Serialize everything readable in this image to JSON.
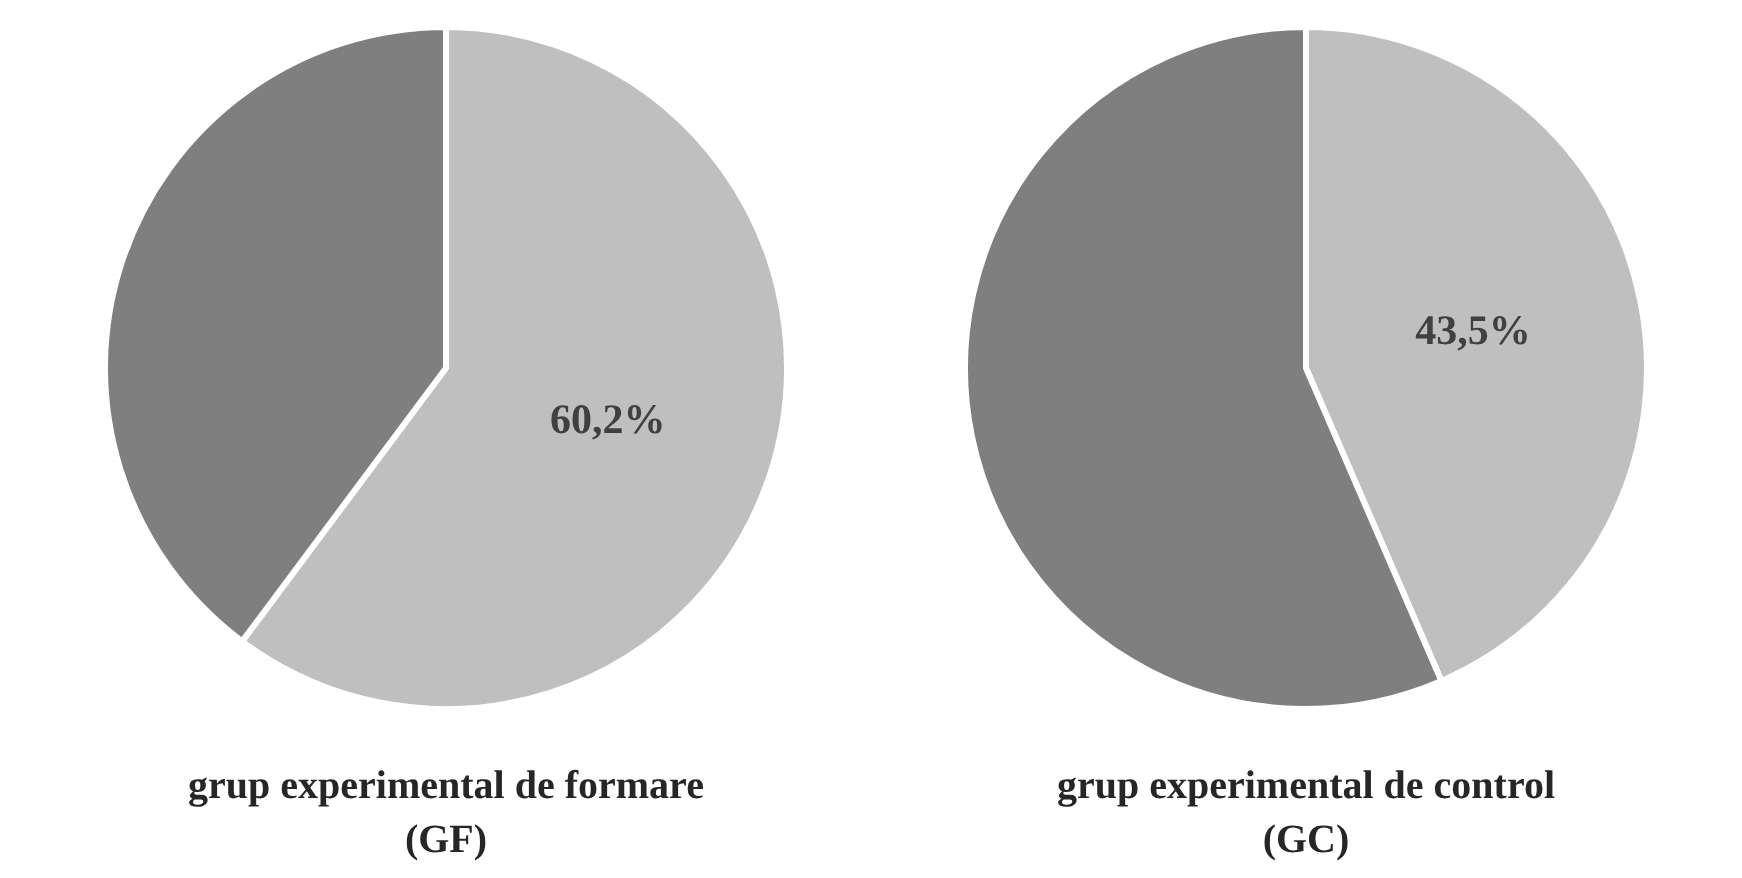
{
  "chart_data": [
    {
      "type": "pie",
      "title": "grup experimental de formare\n(GF)",
      "categories": [
        null,
        null
      ],
      "values": [
        60.2,
        39.8
      ],
      "colors": [
        "#bfbfbf",
        "#7f7f7f"
      ],
      "value_labels": [
        "60,2%",
        null
      ],
      "legend": false
    },
    {
      "type": "pie",
      "title": "grup experimental de control\n(GC)",
      "categories": [
        null,
        null
      ],
      "values": [
        43.5,
        56.5
      ],
      "colors": [
        "#bfbfbf",
        "#7f7f7f"
      ],
      "value_labels": [
        "43,5%",
        null
      ],
      "legend": false
    }
  ]
}
